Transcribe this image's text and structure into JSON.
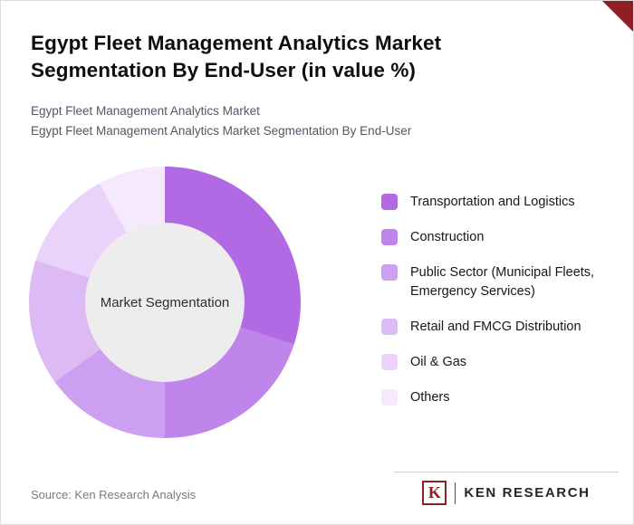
{
  "page": {
    "title": "Egypt Fleet Management Analytics Market Segmentation By End-User (in value %)",
    "subtitle1": "Egypt Fleet Management Analytics Market",
    "subtitle2": "Egypt Fleet Management Analytics Market Segmentation By End-User",
    "source": "Source: Ken Research Analysis",
    "brand": {
      "k": "K",
      "name": "KEN RESEARCH",
      "color": "#8e2024"
    },
    "corner_color": "#8e2024"
  },
  "chart_data": {
    "type": "pie",
    "donut": true,
    "title": "Egypt Fleet Management Analytics Market Segmentation By End-User (in value %)",
    "center_label": "Market Segmentation",
    "center_color": "#ededed",
    "legend_position": "right",
    "categories": [
      "Transportation and Logistics",
      "Construction",
      "Public Sector (Municipal Fleets, Emergency Services)",
      "Retail and FMCG Distribution",
      "Oil & Gas",
      "Others"
    ],
    "values": [
      30,
      20,
      15,
      15,
      12,
      8
    ],
    "colors": [
      "#b269e4",
      "#c085ea",
      "#cd9ff0",
      "#dcbbf5",
      "#e9d3fa",
      "#f5eafd"
    ]
  }
}
